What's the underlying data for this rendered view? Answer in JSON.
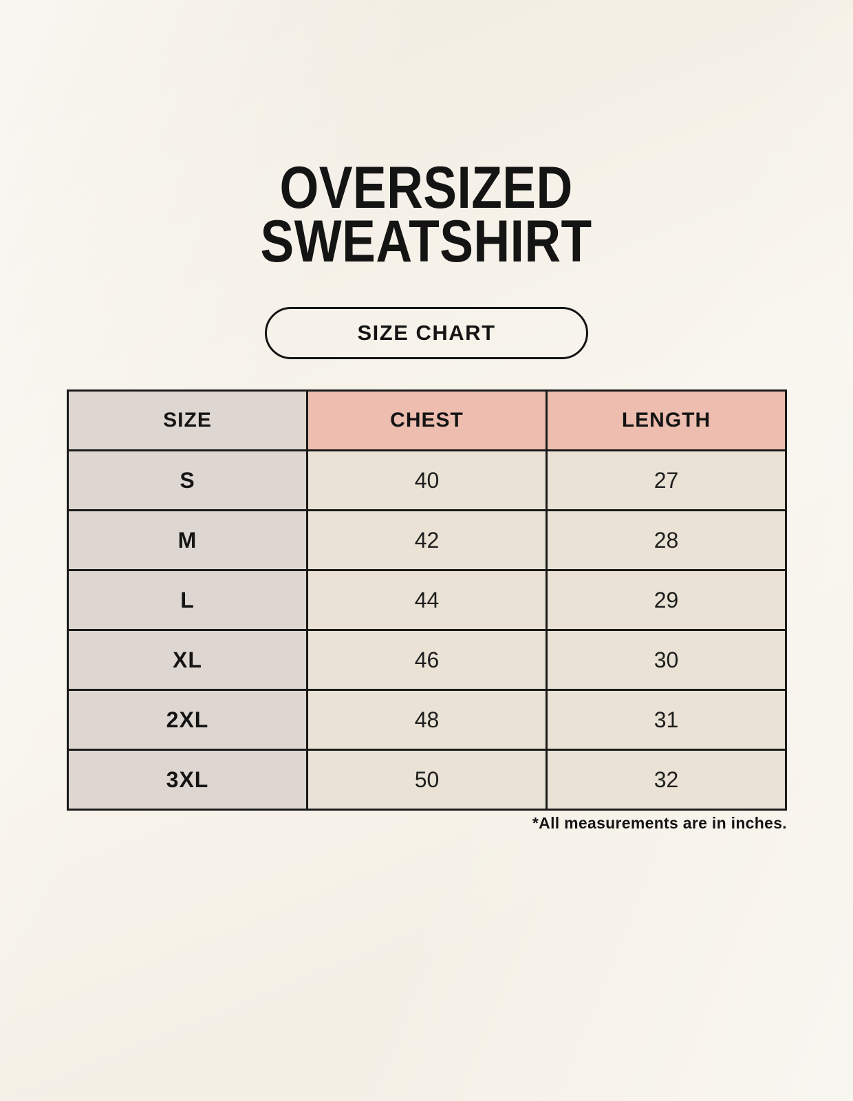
{
  "title": {
    "line1": "OVERSIZED",
    "line2": "SWEATSHIRT"
  },
  "size_chart_button": {
    "label": "SIZE CHART"
  },
  "table": {
    "headers": [
      "SIZE",
      "CHEST",
      "LENGTH"
    ],
    "rows": [
      [
        "S",
        "40",
        "27"
      ],
      [
        "M",
        "42",
        "28"
      ],
      [
        "L",
        "44",
        "29"
      ],
      [
        "XL",
        "46",
        "30"
      ],
      [
        "2XL",
        "48",
        "31"
      ],
      [
        "3XL",
        "50",
        "32"
      ]
    ],
    "footnote": "*All measurements are in inches."
  },
  "colors": {
    "page_background": "#F7F3EA",
    "header_accent": "#EDBEAF",
    "size_column": "#DED7D1",
    "data_cell": "#E9E2D5",
    "border": "#1A1A1A",
    "text": "#141414"
  },
  "chart_data": {
    "type": "table",
    "title": "OVERSIZED SWEATSHIRT",
    "subtitle": "SIZE CHART",
    "columns": [
      "SIZE",
      "CHEST",
      "LENGTH"
    ],
    "rows": [
      {
        "size": "S",
        "chest": 40,
        "length": 27
      },
      {
        "size": "M",
        "chest": 42,
        "length": 28
      },
      {
        "size": "L",
        "chest": 44,
        "length": 29
      },
      {
        "size": "XL",
        "chest": 46,
        "length": 30
      },
      {
        "size": "2XL",
        "chest": 48,
        "length": 31
      },
      {
        "size": "3XL",
        "chest": 50,
        "length": 32
      }
    ],
    "units": "inches",
    "footnote": "*All measurements are in inches."
  }
}
